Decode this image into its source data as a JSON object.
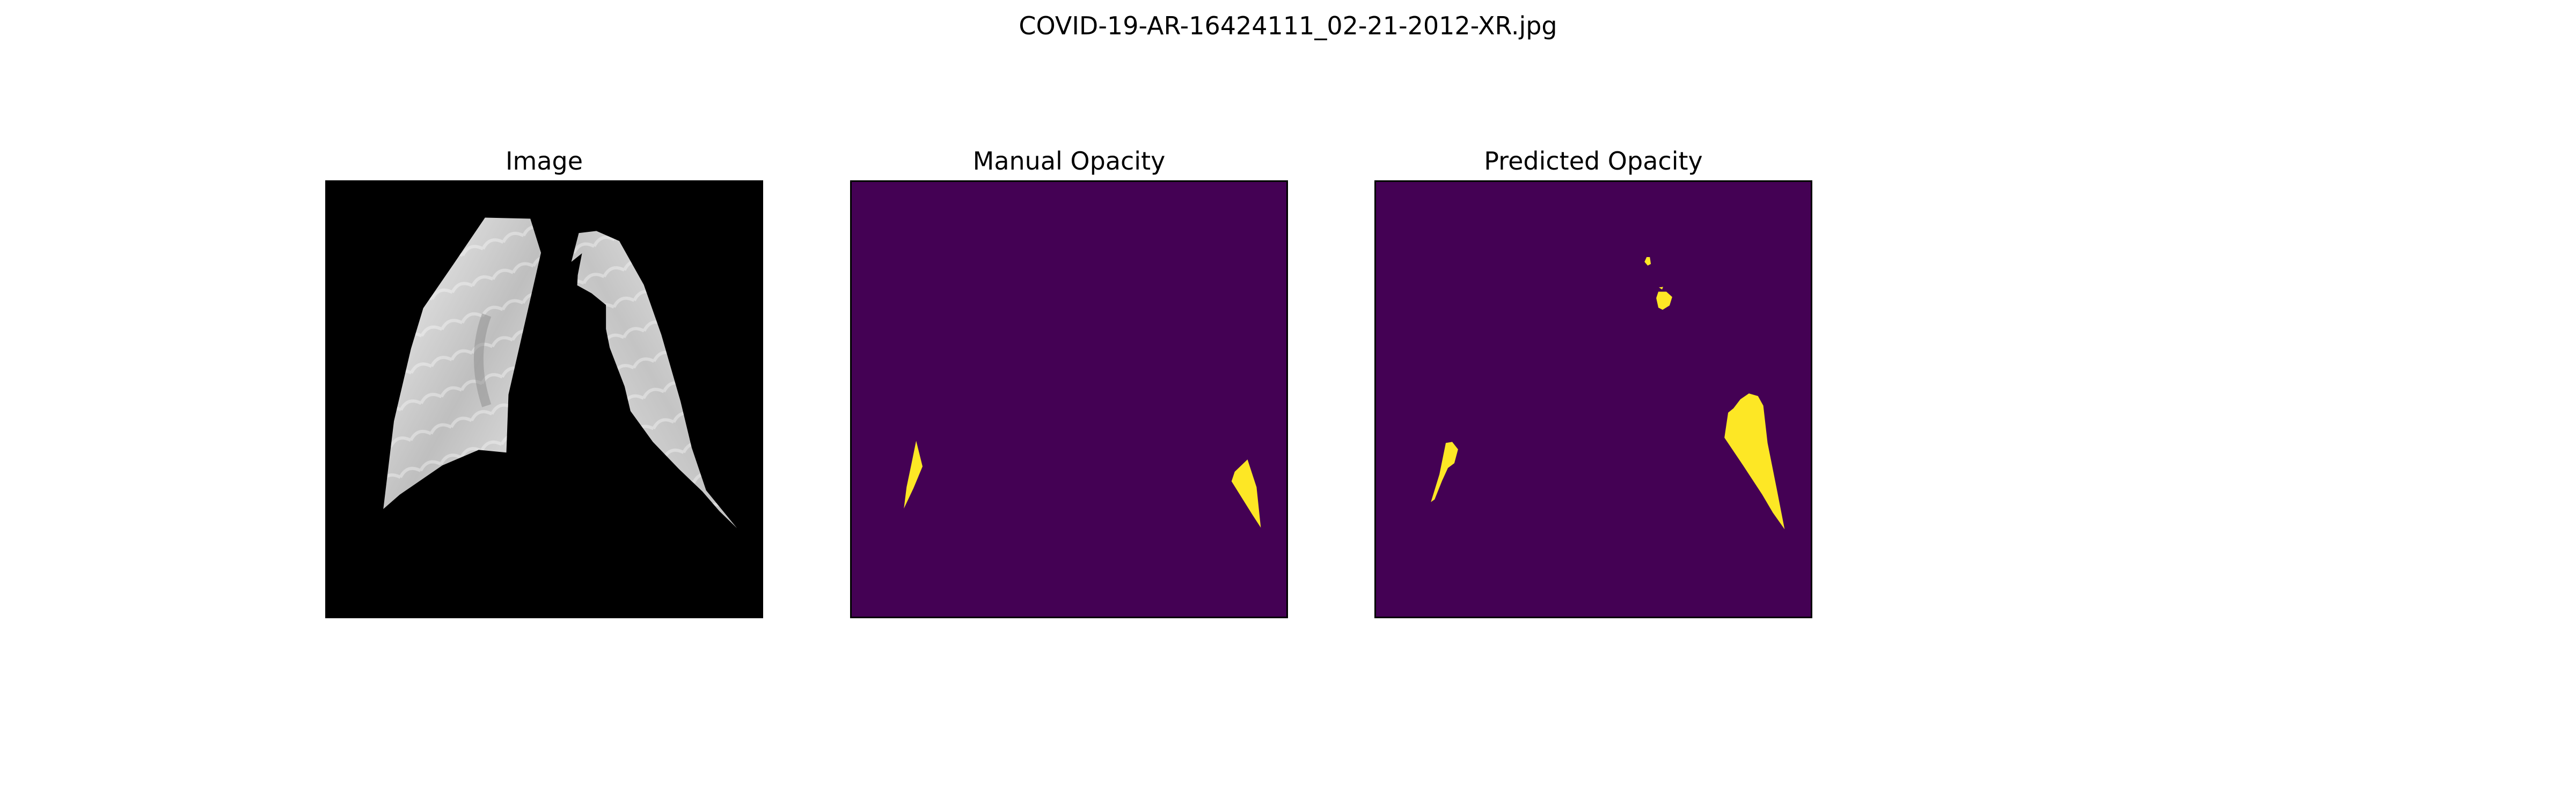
{
  "figure": {
    "title": "COVID-19-AR-16424111_02-21-2012-XR.jpg"
  },
  "panels": [
    {
      "title": "Image",
      "kind": "xray",
      "background": "#000000"
    },
    {
      "title": "Manual Opacity",
      "kind": "mask",
      "background": "#440154",
      "foreground": "#fde725"
    },
    {
      "title": "Predicted Opacity",
      "kind": "mask",
      "background": "#440154",
      "foreground": "#fde725"
    }
  ]
}
